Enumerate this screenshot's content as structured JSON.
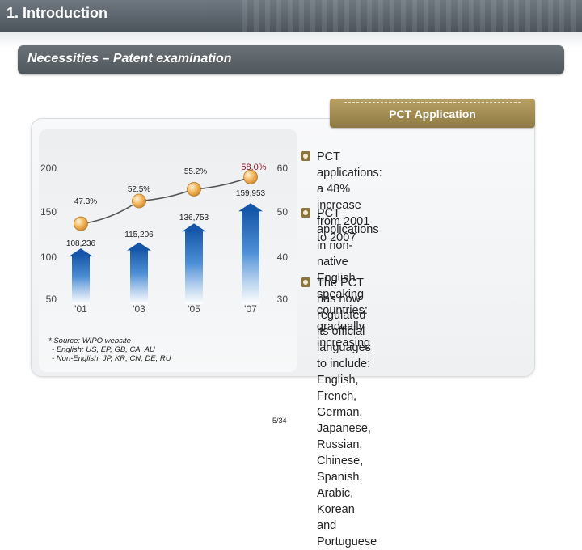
{
  "header": {
    "title": "1. Introduction"
  },
  "banner": {
    "title": "Necessities – Patent examination"
  },
  "tab": {
    "label": "PCT Application"
  },
  "chart_data": {
    "type": "bar+line",
    "categories": [
      "'01",
      "'03",
      "'05",
      "'07"
    ],
    "left_axis": {
      "ticks": [
        200,
        150,
        100,
        50
      ]
    },
    "right_axis": {
      "ticks": [
        60,
        50,
        40,
        30
      ]
    },
    "bar_labels": [
      "108,236",
      "115,206",
      "136,753",
      "159,953"
    ],
    "line_labels": [
      "47.3%",
      "52.5%",
      "55.2%",
      "58.0%"
    ],
    "bar_values": [
      108236,
      115206,
      136753,
      159953
    ],
    "line_values": [
      47.3,
      52.5,
      55.2,
      58.0
    ],
    "line_highlight_color": "#8b1a2b",
    "bar_color": "#1e6fbf",
    "line_color": "#555555",
    "marker_color": "#e8a64a"
  },
  "source": {
    "lines": [
      "* Source: WIPO website",
      "- English: US, EP, GB, CA, AU",
      "- Non-English: JP, KR, CN, DE, RU"
    ]
  },
  "bullets": [
    {
      "lines": [
        "PCT applications: a 48% increase",
        "from 2001 to 2007"
      ]
    },
    {
      "lines": [
        "PCT applications in non-native",
        "English speaking countries:",
        "gradually increasing"
      ]
    },
    {
      "lines": [
        "The PCT has now regulated its official",
        "languages to include: English,",
        "French, German, Japanese, Russian,",
        "Chinese, Spanish, Arabic, Korean",
        "and Portuguese"
      ]
    }
  ],
  "page": {
    "number": "5/34"
  }
}
